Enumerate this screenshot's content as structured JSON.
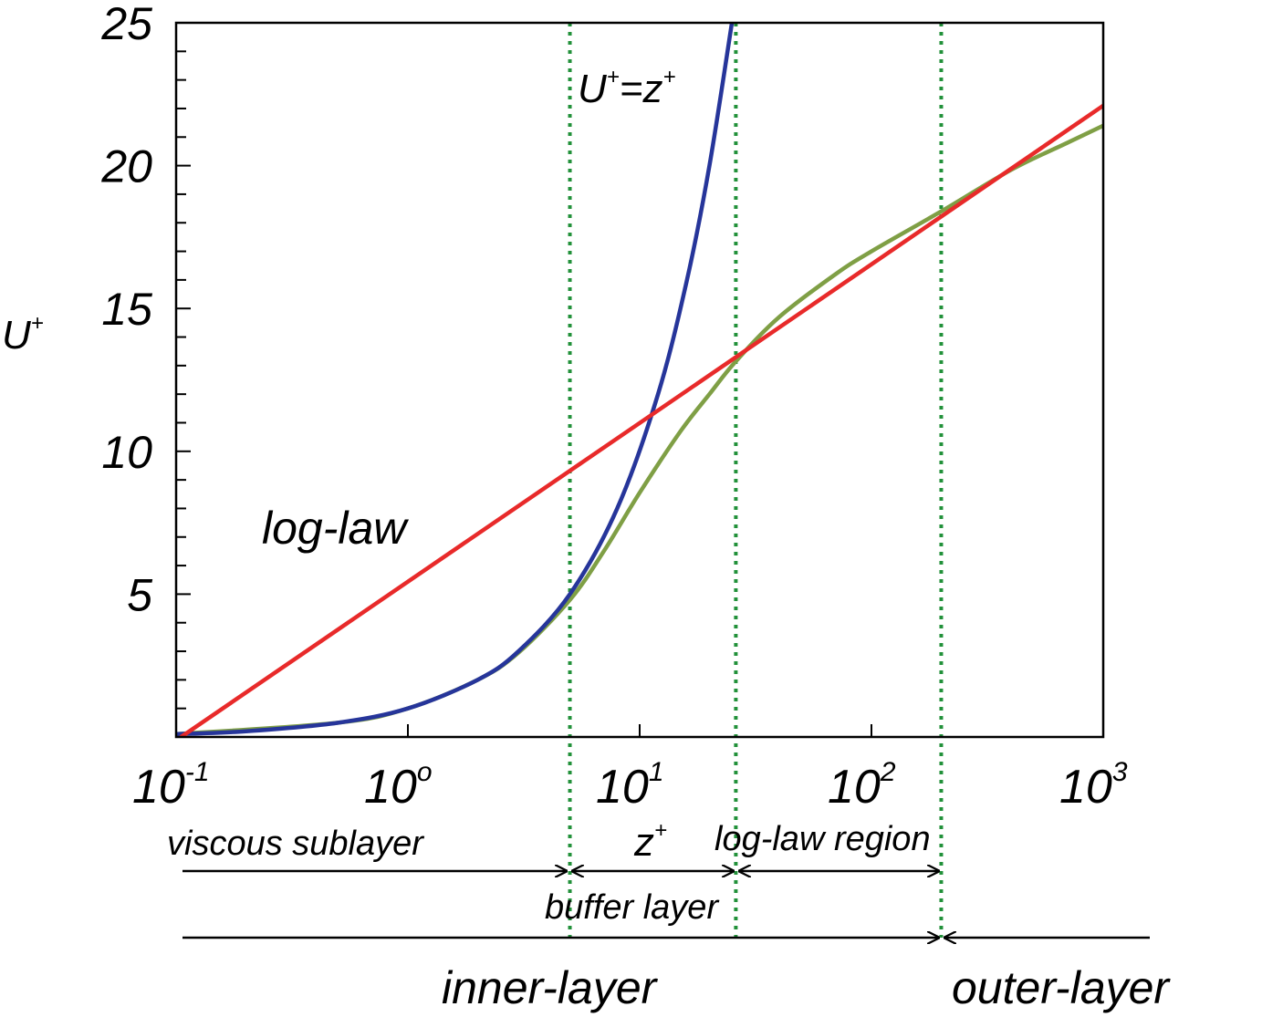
{
  "chart_data": {
    "type": "line",
    "x_scale": "log",
    "xlim": [
      0.1,
      1000
    ],
    "ylim": [
      0,
      25
    ],
    "xlabel": "z",
    "xlabel_sup": "+",
    "ylabel": "U",
    "ylabel_sup": "+",
    "x_ticks": [
      {
        "value": 0.1,
        "base": "10",
        "exp": "-1"
      },
      {
        "value": 1,
        "base": "10",
        "exp": "o"
      },
      {
        "value": 10,
        "base": "10",
        "exp": "1"
      },
      {
        "value": 100,
        "base": "10",
        "exp": "2"
      },
      {
        "value": 1000,
        "base": "10",
        "exp": "3"
      }
    ],
    "y_ticks": [
      {
        "value": 5,
        "label": "5"
      },
      {
        "value": 10,
        "label": "10"
      },
      {
        "value": 15,
        "label": "15"
      },
      {
        "value": 20,
        "label": "20"
      },
      {
        "value": 25,
        "label": "25"
      }
    ],
    "y_minor_step": 1,
    "grid": false,
    "legend": "none",
    "series": [
      {
        "key": "linear",
        "color": "#26359a",
        "x": [
          0.1,
          0.2,
          0.5,
          1,
          2,
          3,
          5,
          8,
          12,
          16,
          20,
          25
        ],
        "y": [
          0.1,
          0.2,
          0.5,
          1,
          2,
          3,
          5,
          8,
          12,
          16,
          20,
          25
        ]
      },
      {
        "key": "loglaw",
        "color": "#e82a2a",
        "x": [
          0.105,
          1000
        ],
        "y": [
          0,
          22.1
        ]
      },
      {
        "key": "profile",
        "color": "#7f9f45",
        "x": [
          0.1,
          0.5,
          1,
          2,
          3,
          5,
          7,
          10,
          15,
          20,
          26,
          40,
          70,
          100,
          200,
          400,
          700,
          1000
        ],
        "y": [
          0.1,
          0.5,
          1.0,
          2.0,
          2.95,
          4.8,
          6.5,
          8.55,
          10.7,
          12.0,
          13.15,
          14.7,
          16.2,
          17.0,
          18.4,
          19.85,
          20.8,
          21.4
        ]
      }
    ],
    "region_boundaries": [
      5,
      26,
      200
    ],
    "boundary_color": "#22913a",
    "annotations": {
      "linear_label_base": "U",
      "linear_label_sup1": "+",
      "linear_label_eq": "=z",
      "linear_label_sup2": "+",
      "loglaw_label": "log-law"
    },
    "regions": {
      "viscous": "viscous sublayer",
      "buffer": "buffer layer",
      "loglaw": "log-law region",
      "inner": "inner-layer",
      "outer": "outer-layer"
    }
  }
}
